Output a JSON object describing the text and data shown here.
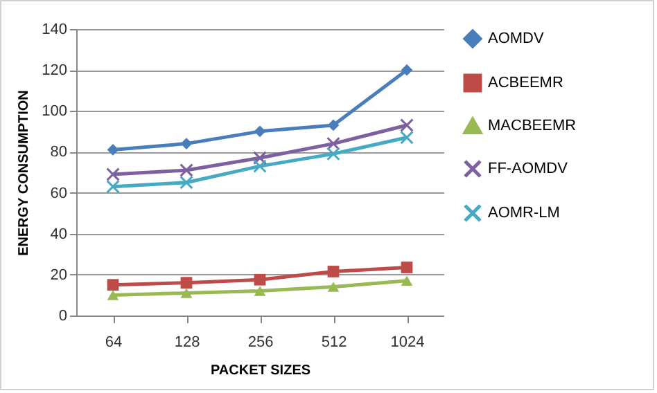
{
  "chart_data": {
    "type": "line",
    "xlabel": "PACKET SIZES",
    "ylabel": "ENERGY CONSUMPTION",
    "categories": [
      "64",
      "128",
      "256",
      "512",
      "1024"
    ],
    "ylim": [
      0,
      140
    ],
    "yticks": [
      0,
      20,
      40,
      60,
      80,
      100,
      120,
      140
    ],
    "grid": "y",
    "legend": "right",
    "line_style": "solid",
    "series": [
      {
        "name": "AOMDV",
        "color": "#4a7ebb",
        "marker": "diamond",
        "values": [
          81,
          84,
          90,
          93,
          120
        ]
      },
      {
        "name": "ACBEEMR",
        "color": "#be4b48",
        "marker": "square",
        "values": [
          15,
          16,
          17.5,
          21.5,
          23.5
        ]
      },
      {
        "name": "MACBEEMR",
        "color": "#98b954",
        "marker": "triangle",
        "values": [
          10,
          11,
          12,
          14,
          17
        ]
      },
      {
        "name": "FF-AOMDV",
        "color": "#7d60a0",
        "marker": "cross",
        "values": [
          69,
          71,
          77,
          84,
          93
        ]
      },
      {
        "name": "AOMR-LM",
        "color": "#46aac5",
        "marker": "cross",
        "values": [
          63,
          65,
          73,
          79,
          87
        ]
      }
    ]
  }
}
